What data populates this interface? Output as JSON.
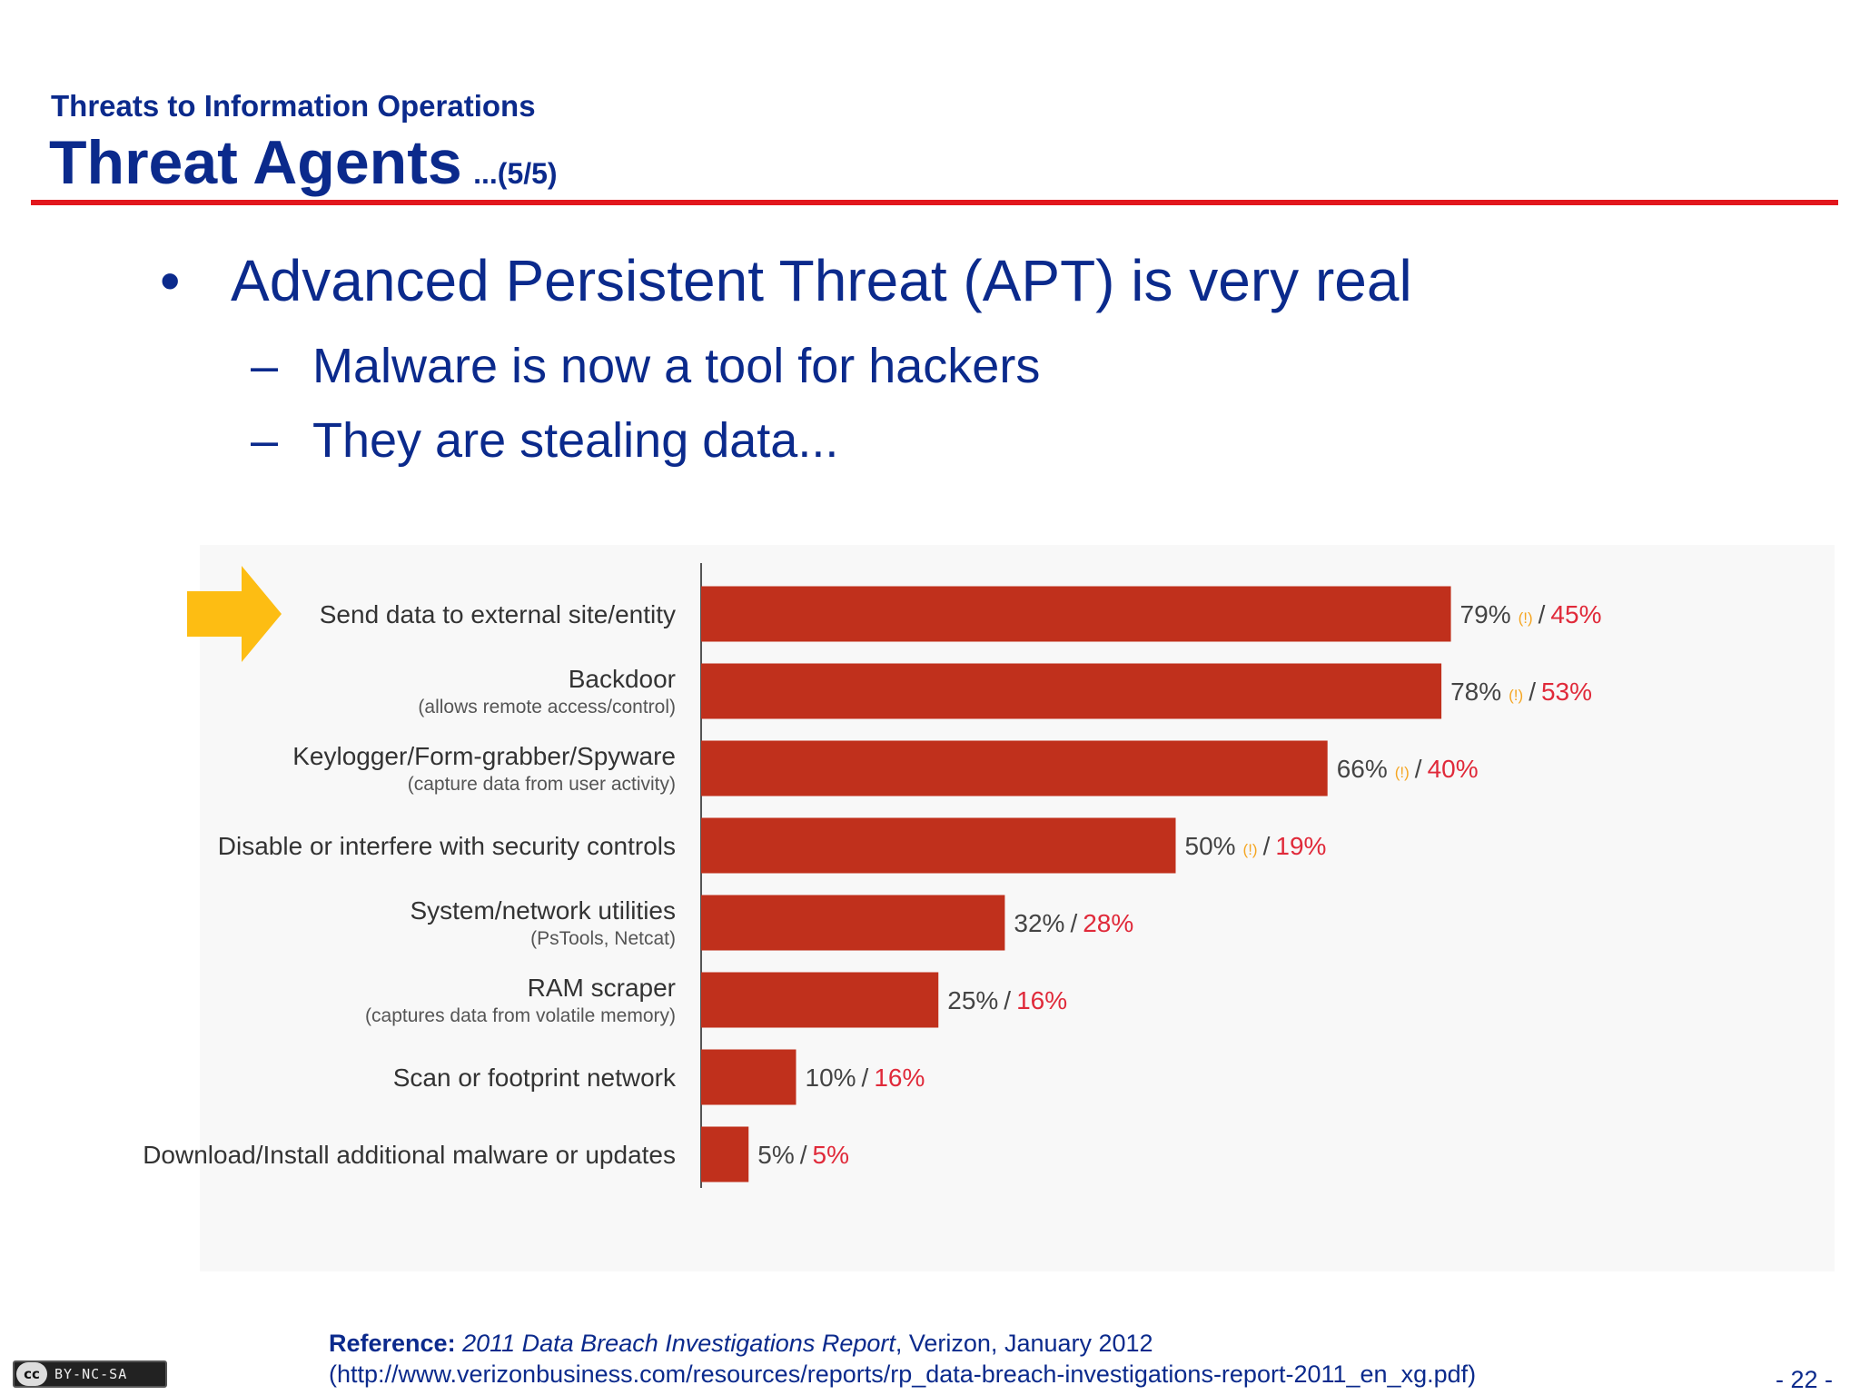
{
  "slide": {
    "supertitle": "Threats to Information Operations",
    "title": "Threat Agents",
    "title_suffix": "...(5/5)",
    "bullet": "Advanced Persistent Threat (APT) is very real",
    "subbullets": [
      "Malware is now a tool for hackers",
      "They are stealing data..."
    ],
    "bullet_marker": "•",
    "subbullet_marker": "–"
  },
  "chart_data": {
    "type": "bar",
    "orientation": "horizontal",
    "categories": [
      "Send data to external site/entity",
      "Backdoor",
      "Keylogger/Form-grabber/Spyware",
      "Disable or interfere with security controls",
      "System/network utilities",
      "RAM scraper",
      "Scan or footprint network",
      "Download/Install additional malware or updates"
    ],
    "category_notes": [
      "",
      "(allows remote access/control)",
      "(capture data from user activity)",
      "",
      "(PsTools, Netcat)",
      "(captures data from volatile memory)",
      "",
      ""
    ],
    "series": [
      {
        "values": [
          79,
          78,
          66,
          50,
          32,
          25,
          10,
          5
        ],
        "color": "#c0301c"
      },
      {
        "values": [
          45,
          53,
          40,
          19,
          28,
          16,
          16,
          5
        ],
        "color": "#e02a3a"
      }
    ],
    "labels": [
      "79%",
      "78%",
      "66%",
      "50%",
      "32%",
      "25%",
      "10%",
      "5%"
    ],
    "secondary_labels": [
      "45%",
      "53%",
      "40%",
      "19%",
      "28%",
      "16%",
      "16%",
      "5%"
    ],
    "flag_marker": "(!)",
    "flagged": [
      true,
      true,
      true,
      true,
      false,
      false,
      false,
      false
    ],
    "flag_color": "#f5a623",
    "highlight_arrow": {
      "row": 0,
      "color": "#fdbd13"
    },
    "xlim": [
      0,
      100
    ],
    "grid": false,
    "legend": "none"
  },
  "footer": {
    "ref_label": "Reference:",
    "ref_title": "2011 Data Breach Investigations Report",
    "ref_rest": ", Verizon, January 2012",
    "ref_url": "(http://www.verizonbusiness.com/resources/reports/rp_data-breach-investigations-report-2011_en_xg.pdf)",
    "page": "- 22 -",
    "license_badge_icon": "cc",
    "license_badge_text": "BY-NC-SA"
  }
}
